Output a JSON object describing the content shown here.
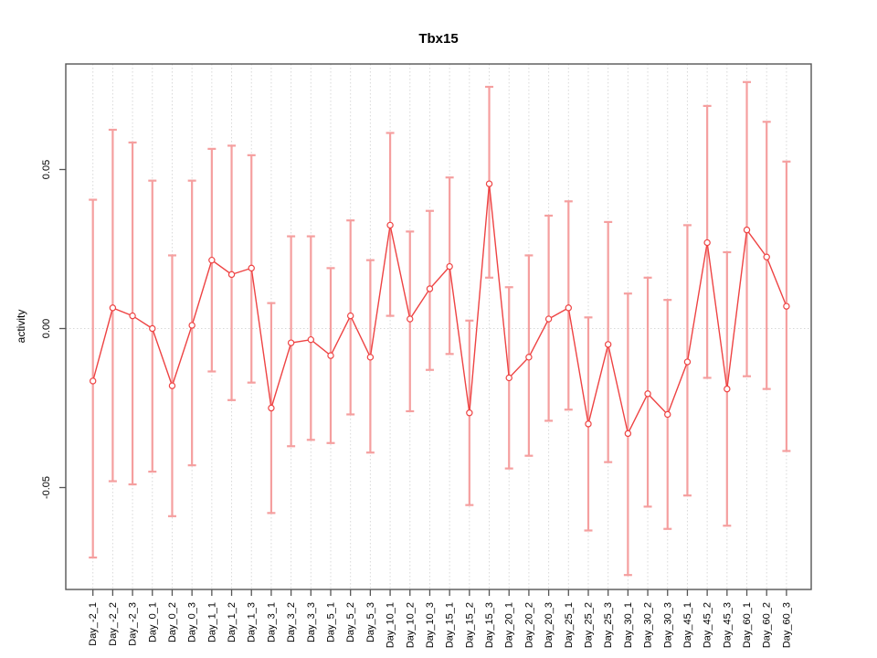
{
  "title": "Tbx15",
  "y_axis": {
    "label": "activity",
    "ticks": [
      {
        "value": 0.05,
        "label": "0.05"
      },
      {
        "value": 0.0,
        "label": "0.00"
      },
      {
        "value": -0.05,
        "label": "-0.05"
      }
    ]
  },
  "x_axis": {
    "labels": [
      "Day_-2_1",
      "Day_-2_2",
      "Day_-2_3",
      "Day_0_1",
      "Day_0_2",
      "Day_0_3",
      "Day_1_1",
      "Day_1_2",
      "Day_1_3",
      "Day_3_1",
      "Day_3_2",
      "Day_3_3",
      "Day_5_1",
      "Day_5_2",
      "Day_5_3",
      "Day_10_1",
      "Day_10_2",
      "Day_10_3",
      "Day_15_1",
      "Day_15_2",
      "Day_15_3",
      "Day_20_1",
      "Day_20_2",
      "Day_20_3",
      "Day_25_1",
      "Day_25_2",
      "Day_25_3",
      "Day_30_1",
      "Day_30_2",
      "Day_30_3",
      "Day_45_1",
      "Day_45_2",
      "Day_45_3",
      "Day_60_1",
      "Day_60_2",
      "Day_60_3"
    ]
  },
  "colors": {
    "line": "#ee4343",
    "point_stroke": "#ee4343",
    "point_fill": "#ffffff",
    "error_bar": "#f59f9f",
    "grid": "#d8d8d8",
    "axis": "#555555",
    "text": "#000000"
  },
  "chart_data": {
    "type": "line",
    "title": "Tbx15",
    "xlabel": "",
    "ylabel": "activity",
    "ylim": [
      -0.082,
      0.083
    ],
    "grid": "vertical dotted gridline at every category; horizontal dotted line at y=0",
    "legend": "none",
    "categories": [
      "Day_-2_1",
      "Day_-2_2",
      "Day_-2_3",
      "Day_0_1",
      "Day_0_2",
      "Day_0_3",
      "Day_1_1",
      "Day_1_2",
      "Day_1_3",
      "Day_3_1",
      "Day_3_2",
      "Day_3_3",
      "Day_5_1",
      "Day_5_2",
      "Day_5_3",
      "Day_10_1",
      "Day_10_2",
      "Day_10_3",
      "Day_15_1",
      "Day_15_2",
      "Day_15_3",
      "Day_20_1",
      "Day_20_2",
      "Day_20_3",
      "Day_25_1",
      "Day_25_2",
      "Day_25_3",
      "Day_30_1",
      "Day_30_2",
      "Day_30_3",
      "Day_45_1",
      "Day_45_2",
      "Day_45_3",
      "Day_60_1",
      "Day_60_2",
      "Day_60_3"
    ],
    "series": [
      {
        "name": "activity",
        "values": [
          -0.0165,
          0.0065,
          0.004,
          0.0,
          -0.018,
          0.001,
          0.0215,
          0.017,
          0.019,
          -0.025,
          -0.0045,
          -0.0035,
          -0.0085,
          0.004,
          -0.009,
          0.0325,
          0.003,
          0.0125,
          0.0195,
          -0.0265,
          0.0455,
          -0.0155,
          -0.009,
          0.003,
          0.0065,
          -0.03,
          -0.005,
          -0.033,
          -0.0205,
          -0.027,
          -0.0105,
          0.027,
          -0.019,
          0.031,
          0.0225,
          0.007
        ]
      }
    ],
    "error_upper": [
      0.0405,
      0.0625,
      0.0585,
      0.0465,
      0.023,
      0.0465,
      0.0565,
      0.0575,
      0.0545,
      0.008,
      0.029,
      0.029,
      0.019,
      0.034,
      0.0215,
      0.0615,
      0.0305,
      0.037,
      0.0475,
      0.0025,
      0.076,
      0.013,
      0.023,
      0.0355,
      0.04,
      0.0035,
      0.0335,
      0.011,
      0.016,
      0.009,
      0.0325,
      0.07,
      0.024,
      0.0775,
      0.065,
      0.0525
    ],
    "error_lower": [
      -0.072,
      -0.048,
      -0.049,
      -0.045,
      -0.059,
      -0.043,
      -0.0135,
      -0.0225,
      -0.017,
      -0.058,
      -0.037,
      -0.035,
      -0.036,
      -0.027,
      -0.039,
      0.004,
      -0.026,
      -0.013,
      -0.008,
      -0.0555,
      0.016,
      -0.044,
      -0.04,
      -0.029,
      -0.0255,
      -0.0635,
      -0.042,
      -0.0775,
      -0.056,
      -0.063,
      -0.0525,
      -0.0155,
      -0.062,
      -0.015,
      -0.019,
      -0.0385
    ]
  }
}
